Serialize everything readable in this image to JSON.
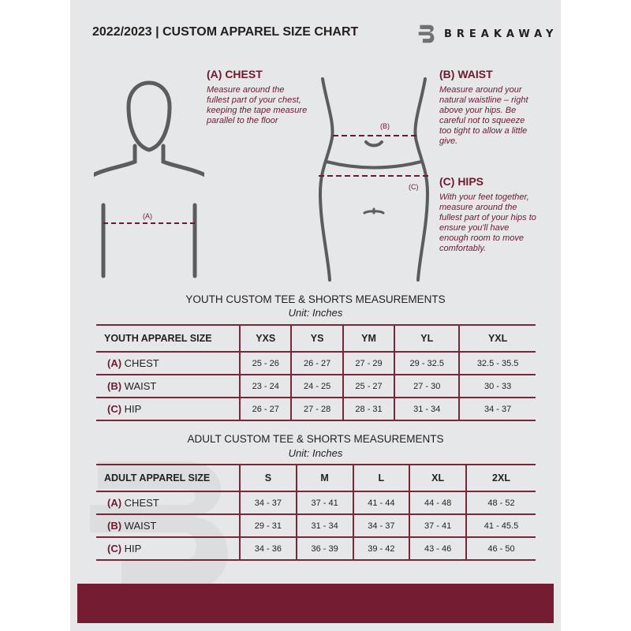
{
  "header": {
    "title": "2022/2023  |  CUSTOM APPAREL SIZE CHART",
    "brand": "BREAKAWAY"
  },
  "colors": {
    "accent": "#6d1a2f",
    "background": "#e6e7e8",
    "band": "#731c32"
  },
  "chest": {
    "heading": "(A) CHEST",
    "text": "Measure around the fullest part of your chest, keeping the tape measure parallel to the floor",
    "marker": "(A)"
  },
  "waist": {
    "heading": "(B) WAIST",
    "text": "Measure around your natural waistline – right above your hips. Be careful not to squeeze too tight to allow a little give.",
    "marker": "(B)"
  },
  "hips": {
    "heading": "(C) HIPS",
    "text": "With your feet together, measure around the fullest part of your hips to ensure you'll have enough room to move comfortably.",
    "marker": "(C)"
  },
  "youth": {
    "title": "YOUTH CUSTOM TEE & SHORTS MEASUREMENTS",
    "unit": "Unit: Inches",
    "label": "YOUTH APPAREL SIZE",
    "sizes": [
      "YXS",
      "YS",
      "YM",
      "YL",
      "YXL"
    ],
    "rows": [
      {
        "code": "(A)",
        "name": "CHEST",
        "values": [
          "25 - 26",
          "26 - 27",
          "27 - 29",
          "29 - 32.5",
          "32.5 - 35.5"
        ]
      },
      {
        "code": "(B)",
        "name": "WAIST",
        "values": [
          "23 - 24",
          "24 - 25",
          "25 - 27",
          "27 - 30",
          "30 - 33"
        ]
      },
      {
        "code": "(C)",
        "name": "HIP",
        "values": [
          "26 - 27",
          "27 - 28",
          "28 - 31",
          "31 - 34",
          "34 - 37"
        ]
      }
    ]
  },
  "adult": {
    "title": "ADULT CUSTOM TEE & SHORTS MEASUREMENTS",
    "unit": "Unit: Inches",
    "label": "ADULT APPAREL SIZE",
    "sizes": [
      "S",
      "M",
      "L",
      "XL",
      "2XL"
    ],
    "rows": [
      {
        "code": "(A)",
        "name": "CHEST",
        "values": [
          "34 - 37",
          "37 - 41",
          "41 - 44",
          "44 - 48",
          "48 - 52"
        ]
      },
      {
        "code": "(B)",
        "name": "WAIST",
        "values": [
          "29 - 31",
          "31 - 34",
          "34 - 37",
          "37 - 41",
          "41 - 45.5"
        ]
      },
      {
        "code": "(C)",
        "name": "HIP",
        "values": [
          "34 - 36",
          "36 - 39",
          "39 - 42",
          "43 - 46",
          "46 - 50"
        ]
      }
    ]
  }
}
